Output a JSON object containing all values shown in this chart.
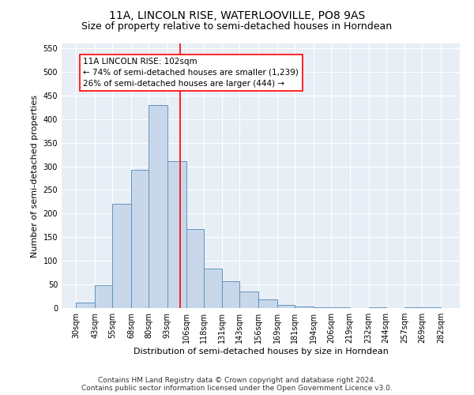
{
  "title": "11A, LINCOLN RISE, WATERLOOVILLE, PO8 9AS",
  "subtitle": "Size of property relative to semi-detached houses in Horndean",
  "xlabel": "Distribution of semi-detached houses by size in Horndean",
  "ylabel": "Number of semi-detached properties",
  "footer_line1": "Contains HM Land Registry data © Crown copyright and database right 2024.",
  "footer_line2": "Contains public sector information licensed under the Open Government Licence v3.0.",
  "bar_lefts": [
    30,
    43,
    55,
    68,
    80,
    93,
    106,
    118,
    131,
    143,
    156,
    169,
    181,
    194,
    206,
    219,
    232,
    244,
    257,
    269
  ],
  "bar_widths": [
    13,
    12,
    13,
    12,
    13,
    13,
    12,
    13,
    12,
    13,
    13,
    12,
    13,
    12,
    13,
    13,
    12,
    13,
    12,
    13
  ],
  "bar_heights": [
    12,
    48,
    220,
    293,
    430,
    311,
    168,
    84,
    57,
    35,
    18,
    6,
    3,
    1,
    1,
    0,
    1,
    0,
    1,
    1
  ],
  "bar_color": "#c8d8ea",
  "bar_edge_color": "#6094c0",
  "property_line_x": 102,
  "annotation_text": "11A LINCOLN RISE: 102sqm\n← 74% of semi-detached houses are smaller (1,239)\n26% of semi-detached houses are larger (444) →",
  "annotation_box_color": "white",
  "annotation_box_edge": "red",
  "vline_color": "red",
  "ylim": [
    0,
    560
  ],
  "yticks": [
    0,
    50,
    100,
    150,
    200,
    250,
    300,
    350,
    400,
    450,
    500,
    550
  ],
  "tick_labels": [
    "30sqm",
    "43sqm",
    "55sqm",
    "68sqm",
    "80sqm",
    "93sqm",
    "106sqm",
    "118sqm",
    "131sqm",
    "143sqm",
    "156sqm",
    "169sqm",
    "181sqm",
    "194sqm",
    "206sqm",
    "219sqm",
    "232sqm",
    "244sqm",
    "257sqm",
    "269sqm",
    "282sqm"
  ],
  "bg_color": "#e8eef6",
  "title_fontsize": 10,
  "subtitle_fontsize": 9,
  "axis_label_fontsize": 8,
  "tick_fontsize": 7,
  "footer_fontsize": 6.5,
  "ylabel_fontsize": 8
}
